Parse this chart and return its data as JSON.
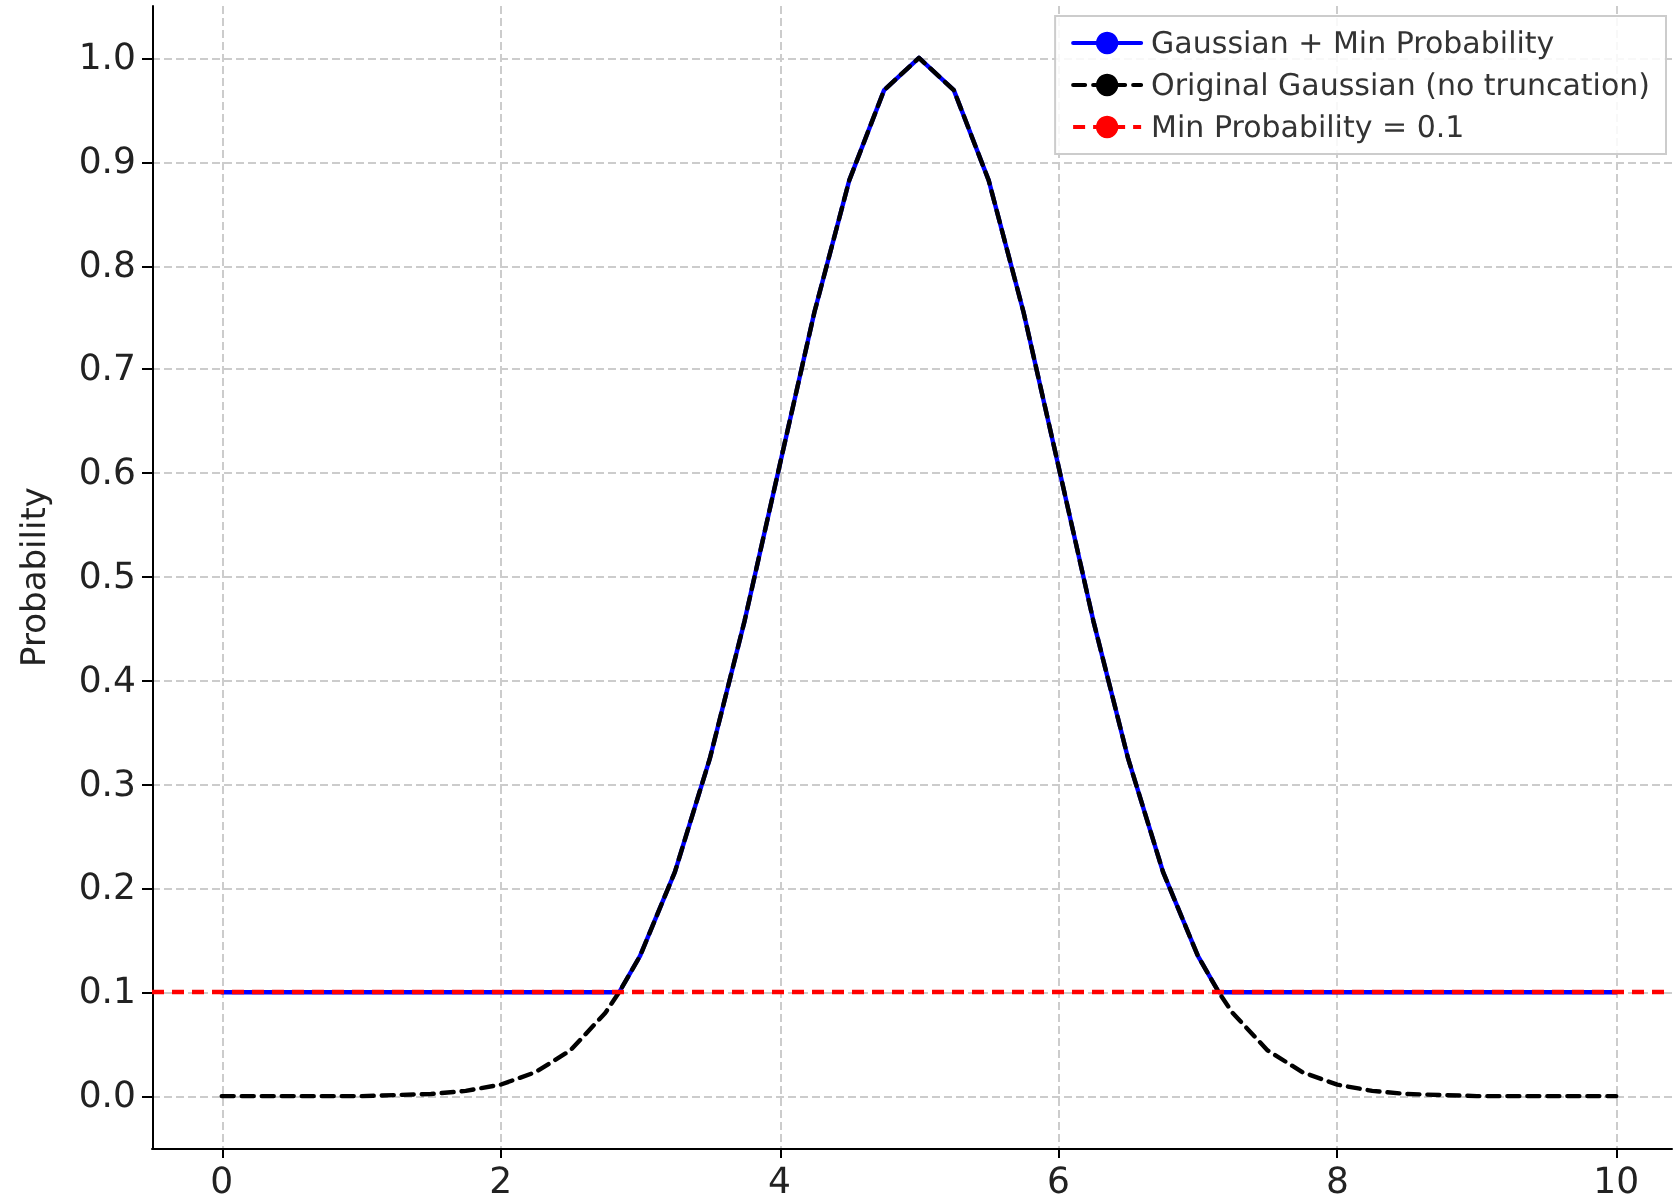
{
  "chart_data": {
    "type": "line",
    "ylabel": "Probability",
    "x": [
      0,
      0.25,
      0.5,
      0.75,
      1,
      1.25,
      1.5,
      1.75,
      2,
      2.25,
      2.5,
      2.75,
      2.85,
      3,
      3.25,
      3.5,
      3.75,
      4,
      4.25,
      4.5,
      4.75,
      5,
      5.25,
      5.5,
      5.75,
      6,
      6.25,
      6.5,
      6.75,
      7,
      7.15,
      7.25,
      7.5,
      7.75,
      8,
      8.25,
      8.5,
      8.75,
      9,
      9.25,
      9.5,
      9.75,
      10
    ],
    "series": [
      {
        "name": "Gaussian + Min Probability",
        "color": "#0000ff",
        "line_style": "solid",
        "values": [
          0.1,
          0.1,
          0.1,
          0.1,
          0.1,
          0.1,
          0.1,
          0.1,
          0.1,
          0.1,
          0.1,
          0.1,
          0.1,
          0.135,
          0.216,
          0.325,
          0.458,
          0.607,
          0.755,
          0.882,
          0.969,
          1,
          0.969,
          0.882,
          0.755,
          0.607,
          0.458,
          0.325,
          0.216,
          0.135,
          0.1,
          0.1,
          0.1,
          0.1,
          0.1,
          0.1,
          0.1,
          0.1,
          0.1,
          0.1,
          0.1,
          0.1,
          0.1
        ]
      },
      {
        "name": "Original Gaussian (no truncation)",
        "color": "#000000",
        "line_style": "dashed",
        "values": [
          0,
          0,
          0,
          0,
          0,
          0.001,
          0.002,
          0.005,
          0.011,
          0.023,
          0.044,
          0.08,
          0.1,
          0.135,
          0.216,
          0.325,
          0.458,
          0.607,
          0.755,
          0.882,
          0.969,
          1,
          0.969,
          0.882,
          0.755,
          0.607,
          0.458,
          0.325,
          0.216,
          0.135,
          0.1,
          0.08,
          0.044,
          0.023,
          0.011,
          0.005,
          0.002,
          0.001,
          0,
          0,
          0,
          0,
          0
        ]
      }
    ],
    "ref_lines": [
      {
        "axis": "y",
        "value": 0.1,
        "label": "Min Probability = 0.1",
        "color": "#ff0000",
        "line_style": "dashed"
      }
    ],
    "xlim": [
      -0.5,
      10.4
    ],
    "xticks": [
      0,
      2,
      4,
      6,
      8,
      10
    ],
    "ylim": [
      -0.05,
      1.05
    ],
    "yticks": [
      {
        "value": 0,
        "label": "0.0"
      },
      {
        "value": 0.1,
        "label": "0.1"
      },
      {
        "value": 0.2,
        "label": "0.2"
      },
      {
        "value": 0.3,
        "label": "0.3"
      },
      {
        "value": 0.4,
        "label": "0.4"
      },
      {
        "value": 0.5,
        "label": "0.5"
      },
      {
        "value": 0.6,
        "label": "0.6"
      },
      {
        "value": 0.7,
        "label": "0.7"
      },
      {
        "value": 0.8,
        "label": "0.8"
      },
      {
        "value": 0.9,
        "label": "0.9"
      },
      {
        "value": 1,
        "label": "1.0"
      }
    ],
    "grid": true,
    "legend": "top right",
    "marker": "none"
  }
}
